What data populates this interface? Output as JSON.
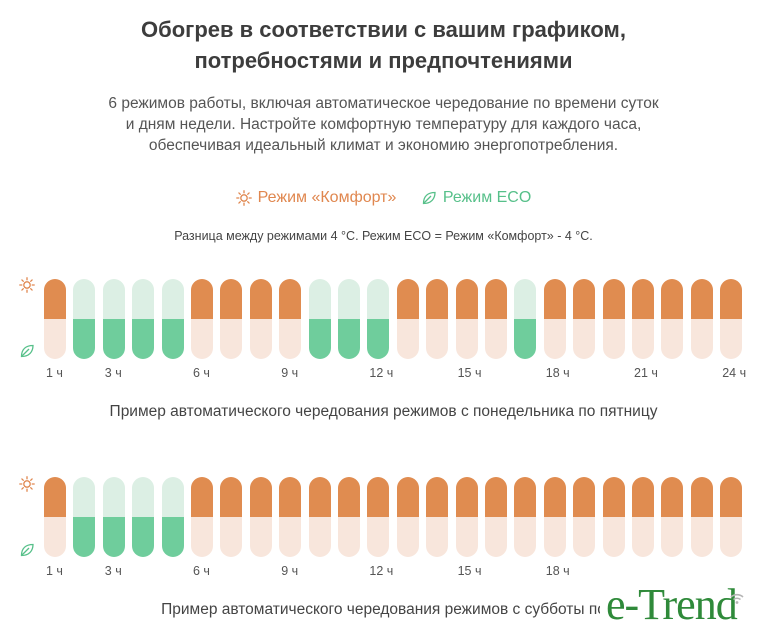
{
  "title": {
    "line1": "Обогрев в соответствии с вашим графиком,",
    "line2": "потребностями и предпочтениями"
  },
  "subtitle": {
    "line1": "6 режимов работы, включая автоматическое чередование по времени суток",
    "line2": "и дням недели. Настройте комфортную температуру для каждого часа,",
    "line3": "обеспечивая идеальный климат и экономию энергопотребления."
  },
  "legend": {
    "comfort": {
      "label": "Режим «Комфорт»",
      "icon": "sun-icon",
      "color": "#e08c50"
    },
    "eco": {
      "label": "Режим ECO",
      "icon": "leaf-icon",
      "color": "#6dcc99"
    }
  },
  "note": "Разница между режимами 4 °C. Режим ECO = Режим «Комфорт» - 4 °C.",
  "colors": {
    "comfort_active": "#e08c50",
    "comfort_inactive": "#f8e6dc",
    "eco_active": "#6fcd9c",
    "eco_inactive": "#dcefe4"
  },
  "schedules": [
    {
      "name": "weekdays",
      "modes": [
        "C",
        "E",
        "E",
        "E",
        "E",
        "C",
        "C",
        "C",
        "C",
        "E",
        "E",
        "E",
        "C",
        "C",
        "C",
        "C",
        "E",
        "C",
        "C",
        "C",
        "C",
        "C",
        "C",
        "C"
      ],
      "labels": [
        {
          "hour": 1,
          "text": "1 ч"
        },
        {
          "hour": 3,
          "text": "3 ч"
        },
        {
          "hour": 6,
          "text": "6 ч"
        },
        {
          "hour": 9,
          "text": "9 ч"
        },
        {
          "hour": 12,
          "text": "12 ч"
        },
        {
          "hour": 15,
          "text": "15 ч"
        },
        {
          "hour": 18,
          "text": "18 ч"
        },
        {
          "hour": 21,
          "text": "21 ч"
        },
        {
          "hour": 24,
          "text": "24 ч"
        }
      ],
      "caption": "Пример автоматического чередования режимов с понедельника по пятницу"
    },
    {
      "name": "weekend",
      "modes": [
        "C",
        "E",
        "E",
        "E",
        "E",
        "C",
        "C",
        "C",
        "C",
        "C",
        "C",
        "C",
        "C",
        "C",
        "C",
        "C",
        "C",
        "C",
        "C",
        "C",
        "C",
        "C",
        "C",
        "C"
      ],
      "labels": [
        {
          "hour": 1,
          "text": "1 ч"
        },
        {
          "hour": 3,
          "text": "3 ч"
        },
        {
          "hour": 6,
          "text": "6 ч"
        },
        {
          "hour": 9,
          "text": "9 ч"
        },
        {
          "hour": 12,
          "text": "12 ч"
        },
        {
          "hour": 15,
          "text": "15 ч"
        },
        {
          "hour": 18,
          "text": "18 ч"
        }
      ],
      "caption": "Пример автоматического чередования режимов с субботы по"
    }
  ],
  "brand": "e-Trend"
}
